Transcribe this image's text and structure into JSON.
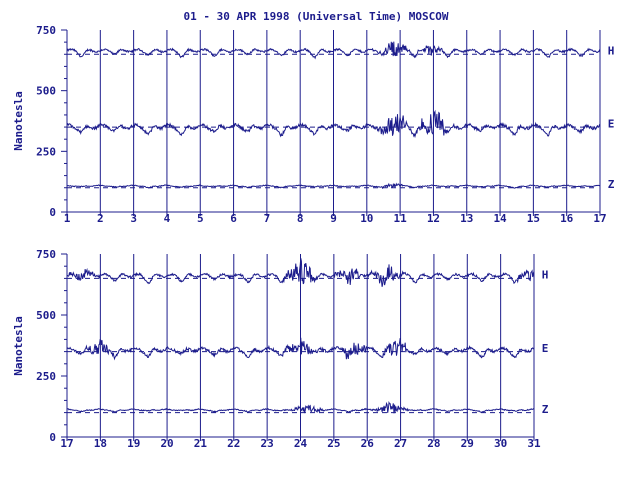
{
  "chart_data": {
    "type": "line",
    "title": "01 - 30 APR 1998 (Universal Time) MOSCOW",
    "ylabel": "Nanotesla",
    "colors": {
      "trace": "#1c1c8c",
      "baseline": "#1c1c8c",
      "background": "#ffffff"
    },
    "grid": "vertical day lines",
    "panels": [
      {
        "xlim": [
          1,
          17
        ],
        "ylim": [
          0,
          750
        ],
        "xticks": [
          "1",
          "2",
          "3",
          "4",
          "5",
          "6",
          "7",
          "8",
          "9",
          "10",
          "11",
          "12",
          "13",
          "14",
          "15",
          "16",
          "17"
        ],
        "yticks": [
          "0",
          "250",
          "500",
          "750"
        ],
        "series": [
          {
            "name": "H",
            "baseline": 650,
            "level": 665,
            "amplitude": 14,
            "disturbance": [
              [
                10.8,
                45
              ],
              [
                11.9,
                30
              ]
            ]
          },
          {
            "name": "E",
            "baseline": 350,
            "level": 352,
            "amplitude": 22,
            "disturbance": [
              [
                10.8,
                80
              ],
              [
                12.0,
                90
              ]
            ]
          },
          {
            "name": "Z",
            "baseline": 100,
            "level": 108,
            "amplitude": 6,
            "disturbance": [
              [
                10.8,
                10
              ]
            ]
          }
        ]
      },
      {
        "xlim": [
          17,
          31
        ],
        "ylim": [
          0,
          750
        ],
        "xticks": [
          "17",
          "18",
          "19",
          "20",
          "21",
          "22",
          "23",
          "24",
          "25",
          "26",
          "27",
          "28",
          "29",
          "30",
          "31"
        ],
        "yticks": [
          "0",
          "250",
          "500",
          "750"
        ],
        "series": [
          {
            "name": "H",
            "baseline": 650,
            "level": 662,
            "amplitude": 16,
            "disturbance": [
              [
                17.5,
                30
              ],
              [
                24.0,
                80
              ],
              [
                25.5,
                45
              ],
              [
                26.6,
                50
              ],
              [
                30.8,
                30
              ]
            ]
          },
          {
            "name": "E",
            "baseline": 350,
            "level": 358,
            "amplitude": 20,
            "disturbance": [
              [
                18.0,
                40
              ],
              [
                24.0,
                45
              ],
              [
                25.6,
                40
              ],
              [
                26.9,
                45
              ]
            ]
          },
          {
            "name": "Z",
            "baseline": 100,
            "level": 112,
            "amplitude": 7,
            "disturbance": [
              [
                24.2,
                25
              ],
              [
                26.7,
                35
              ]
            ]
          }
        ]
      }
    ]
  }
}
